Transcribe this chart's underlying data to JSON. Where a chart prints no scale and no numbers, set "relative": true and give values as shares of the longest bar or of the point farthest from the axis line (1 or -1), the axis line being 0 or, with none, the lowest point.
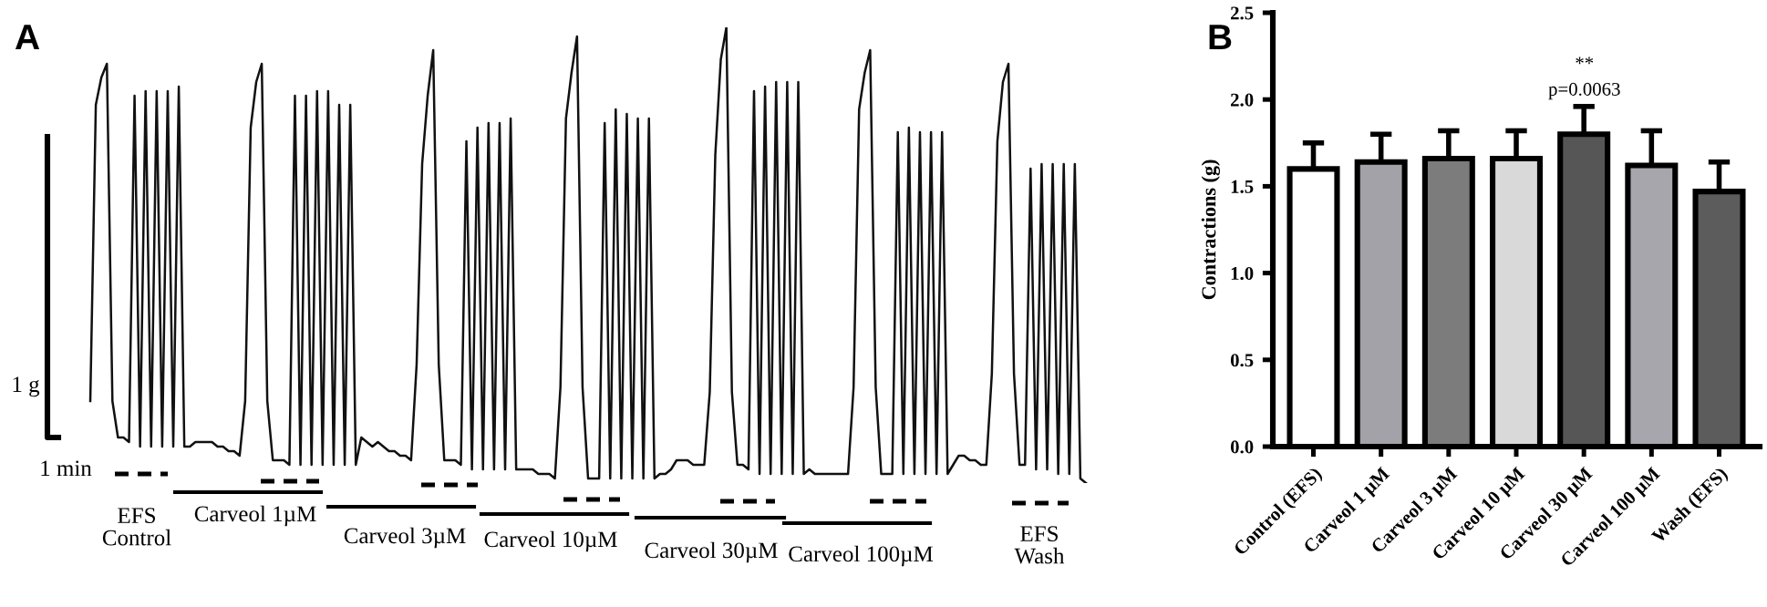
{
  "chart_data": [
    {
      "type": "line",
      "title": "A",
      "relative": true,
      "grid": false,
      "legend": false,
      "marker": "none",
      "line_style": "solid",
      "categories": [
        null,
        null,
        null,
        null,
        null,
        null,
        null,
        null,
        null,
        null,
        null,
        null,
        null,
        null,
        null,
        null,
        null,
        null,
        null,
        null,
        null,
        null,
        null,
        null,
        null,
        null,
        null,
        null,
        null,
        null,
        null,
        null,
        null,
        null,
        null,
        null,
        null,
        null,
        null,
        null,
        null,
        null,
        null,
        null,
        null,
        null,
        null,
        null,
        null,
        null,
        null,
        null,
        null,
        null,
        null,
        null,
        null,
        null,
        null,
        null,
        null,
        null,
        null,
        null,
        null,
        null,
        null,
        null,
        null,
        null,
        null,
        null,
        null,
        null,
        null,
        null,
        null,
        null,
        null,
        null,
        null,
        null,
        null,
        null,
        null,
        null,
        null,
        null,
        null,
        null,
        null,
        null,
        null,
        null,
        null,
        null,
        null,
        null,
        null,
        null,
        null,
        null,
        null,
        null,
        null,
        null,
        null,
        null,
        null,
        null,
        null,
        null,
        null,
        null,
        null,
        null,
        null,
        null,
        null,
        null,
        null,
        null,
        null,
        null,
        null,
        null,
        null,
        null,
        null,
        null,
        null,
        null,
        null,
        null,
        null,
        null,
        null,
        null,
        null,
        null,
        null,
        null,
        null,
        null,
        null,
        null,
        null,
        null,
        null,
        null,
        null,
        null,
        null,
        null,
        null,
        null,
        null,
        null,
        null,
        null,
        null,
        null,
        null,
        null,
        null,
        null,
        null,
        null,
        null,
        null,
        null,
        null,
        null,
        null,
        null,
        null,
        null,
        null,
        null,
        null,
        null
      ],
      "series": [
        {
          "color": "#111111",
          "values": [
            0.18,
            0.83,
            0.89,
            0.92,
            0.18,
            0.1,
            0.1,
            0.09,
            0.85,
            0.08,
            0.86,
            0.08,
            0.86,
            0.08,
            0.86,
            0.08,
            0.87,
            0.08,
            0.08,
            0.09,
            0.09,
            0.09,
            0.09,
            0.08,
            0.08,
            0.07,
            0.07,
            0.06,
            0.18,
            0.78,
            0.88,
            0.92,
            0.18,
            0.05,
            0.05,
            0.05,
            0.04,
            0.85,
            0.04,
            0.85,
            0.04,
            0.86,
            0.04,
            0.86,
            0.04,
            0.83,
            0.04,
            0.83,
            0.04,
            0.1,
            0.09,
            0.08,
            0.09,
            0.08,
            0.07,
            0.07,
            0.06,
            0.06,
            0.05,
            0.26,
            0.7,
            0.85,
            0.95,
            0.26,
            0.05,
            0.05,
            0.05,
            0.04,
            0.75,
            0.03,
            0.78,
            0.03,
            0.79,
            0.03,
            0.79,
            0.03,
            0.8,
            0.03,
            0.03,
            0.03,
            0.03,
            0.02,
            0.02,
            0.02,
            0.01,
            0.21,
            0.8,
            0.9,
            0.98,
            0.21,
            0.01,
            0.01,
            0.01,
            0.79,
            0.01,
            0.82,
            0.01,
            0.81,
            0.01,
            0.8,
            0.01,
            0.8,
            0.01,
            0.02,
            0.02,
            0.03,
            0.05,
            0.05,
            0.05,
            0.04,
            0.04,
            0.04,
            0.2,
            0.72,
            0.93,
            1.0,
            0.2,
            0.04,
            0.04,
            0.03,
            0.86,
            0.02,
            0.87,
            0.02,
            0.88,
            0.02,
            0.88,
            0.02,
            0.88,
            0.02,
            0.03,
            0.02,
            0.02,
            0.02,
            0.02,
            0.02,
            0.02,
            0.02,
            0.21,
            0.82,
            0.9,
            0.95,
            0.21,
            0.02,
            0.02,
            0.02,
            0.77,
            0.02,
            0.78,
            0.02,
            0.77,
            0.02,
            0.77,
            0.02,
            0.77,
            0.02,
            0.04,
            0.06,
            0.06,
            0.05,
            0.05,
            0.04,
            0.04,
            0.24,
            0.75,
            0.88,
            0.92,
            0.24,
            0.04,
            0.04,
            0.69,
            0.03,
            0.7,
            0.03,
            0.7,
            0.02,
            0.7,
            0.02,
            0.7,
            0.01,
            0.0
          ]
        }
      ],
      "annotations": [
        "1 g",
        "1 min",
        "EFS\nControl",
        "Carveol 1µM",
        "Carveol 3µM",
        "Carveol 10µM",
        "Carveol 30µM",
        "Carveol 100µM",
        "EFS\nWash"
      ]
    },
    {
      "type": "bar",
      "title": "B",
      "ylabel": "Contractions (g)",
      "grid": false,
      "legend": false,
      "categories": [
        "Control (EFS)",
        "Carveol 1 µM",
        "Carveol 3 µM",
        "Carveol 10 µM",
        "Carveol 30 µM",
        "Carveol 100 µM",
        "Wash (EFS)"
      ],
      "values": [
        1.6,
        1.64,
        1.66,
        1.66,
        1.8,
        1.62,
        1.47
      ],
      "colors": [
        "#ffffff",
        "#a2a2a8",
        "#7c7c7c",
        "#d9d9d9",
        "#565656",
        "#a6a6ac",
        "#5c5c5c"
      ],
      "errors": [
        [
          1.6,
          1.75
        ],
        [
          1.64,
          1.8
        ],
        [
          1.66,
          1.82
        ],
        [
          1.66,
          1.82
        ],
        [
          1.8,
          1.96
        ],
        [
          1.62,
          1.82
        ],
        [
          1.47,
          1.64
        ]
      ],
      "ylim": [
        0,
        2.5
      ],
      "yticks": [
        {
          "value": 0,
          "label": "0.0"
        },
        {
          "value": 0.5,
          "label": "0.5"
        },
        {
          "value": 1,
          "label": "1.0"
        },
        {
          "value": 1.5,
          "label": "1.5"
        },
        {
          "value": 2,
          "label": "2.0"
        },
        {
          "value": 2.5,
          "label": "2.5"
        }
      ],
      "annotations": [
        "**",
        "p=0.0063"
      ]
    }
  ]
}
